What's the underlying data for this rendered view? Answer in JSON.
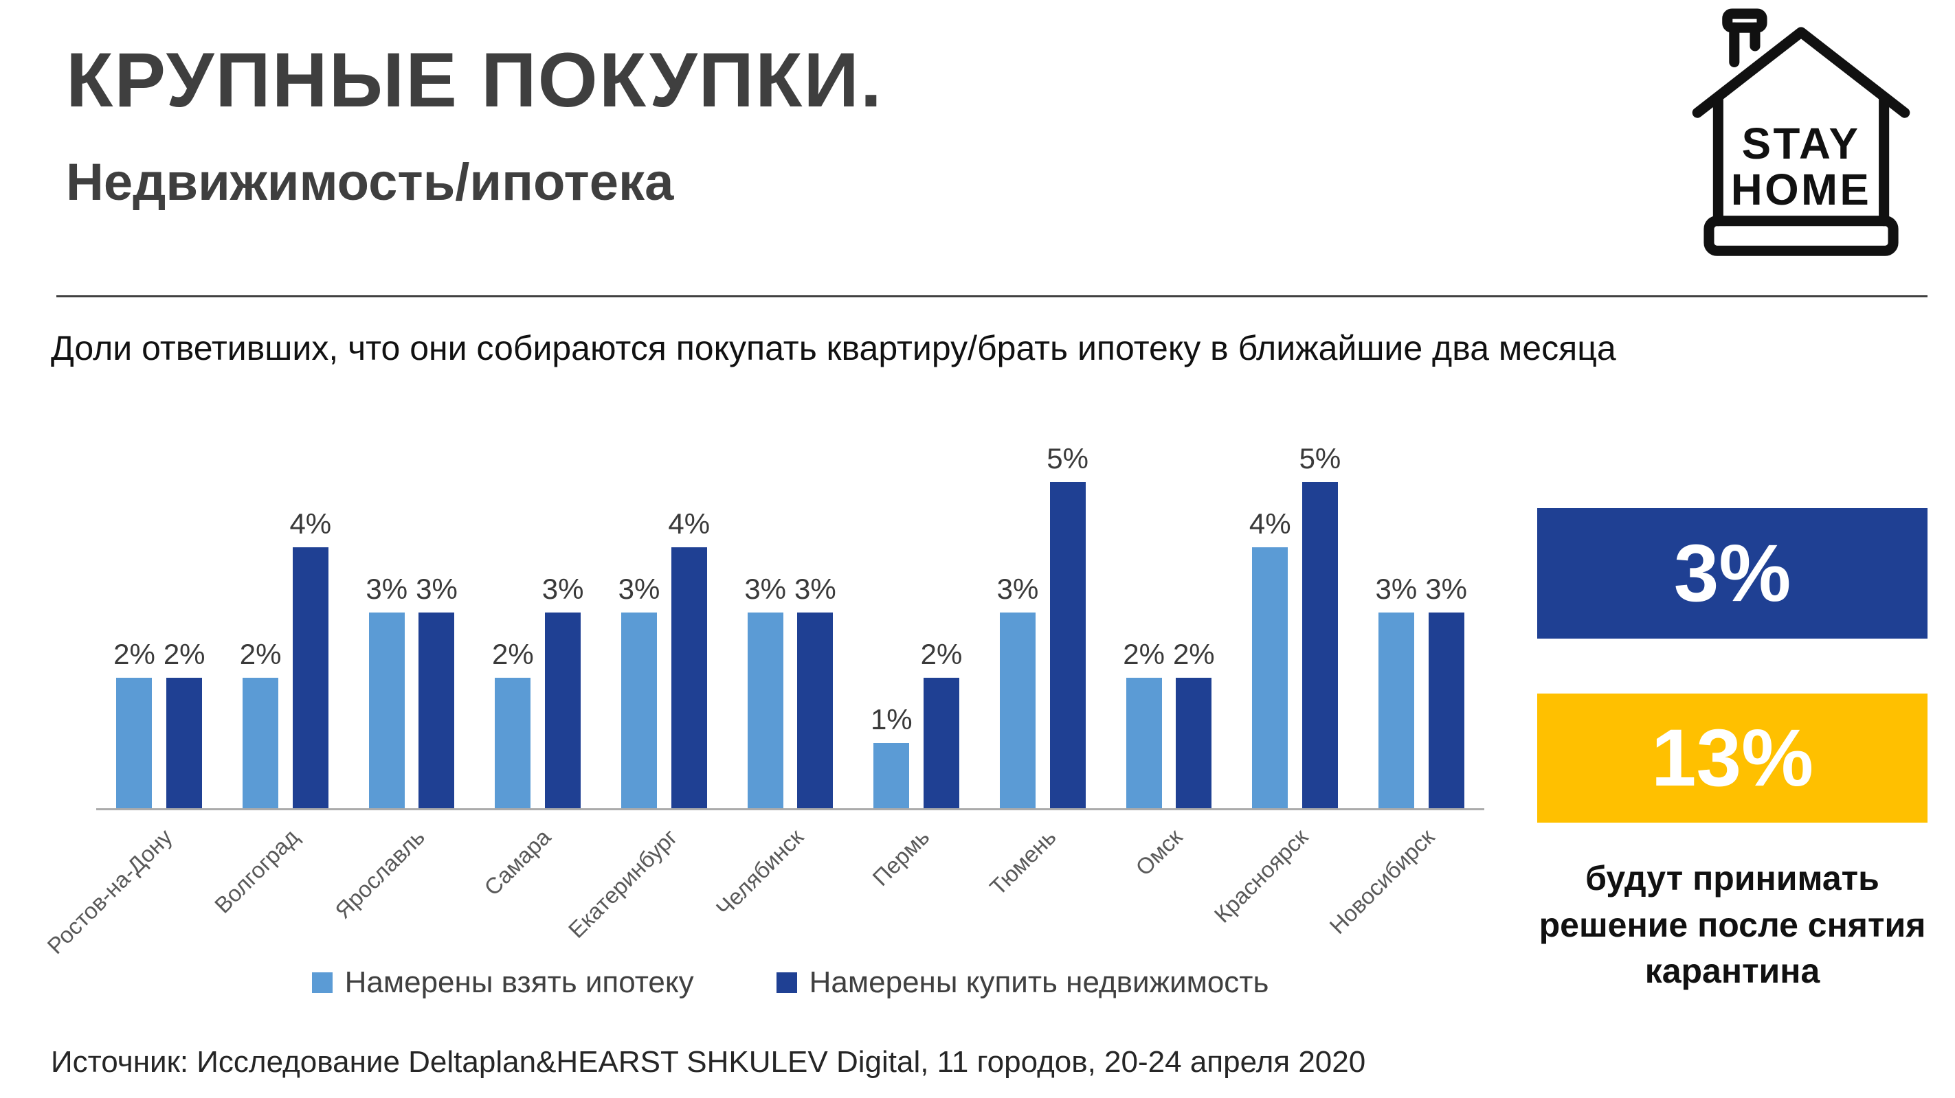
{
  "header": {
    "title": "КРУПНЫЕ ПОКУПКИ.",
    "subtitle": "Недвижимость/ипотека"
  },
  "logo": {
    "line1": "STAY",
    "line2": "HOME"
  },
  "description": "Доли ответивших, что они собираются покупать квартиру/брать ипотеку в ближайшие два месяца",
  "chart_data": {
    "type": "bar",
    "categories": [
      "Ростов-на-Дону",
      "Волгоград",
      "Ярославль",
      "Самара",
      "Екатеринбург",
      "Челябинск",
      "Пермь",
      "Тюмень",
      "Омск",
      "Красноярск",
      "Новосибирск"
    ],
    "series": [
      {
        "name": "Намерены взять ипотеку",
        "color": "#5B9BD5",
        "values": [
          2,
          2,
          3,
          2,
          3,
          3,
          1,
          3,
          2,
          4,
          3
        ]
      },
      {
        "name": "Намерены купить недвижимость",
        "color": "#1F4093",
        "values": [
          2,
          4,
          3,
          3,
          4,
          3,
          2,
          5,
          2,
          5,
          3
        ]
      }
    ],
    "value_suffix": "%",
    "ylim": [
      0,
      5.5
    ],
    "grid": false,
    "legend_position": "bottom"
  },
  "sidebar": {
    "stat1": {
      "value": "3%",
      "color": "#1F4093"
    },
    "stat2": {
      "value": "13%",
      "color": "#FFC000"
    },
    "caption": "будут принимать решение после снятия карантина"
  },
  "source": "Источник: Исследование Deltaplan&HEARST SHKULEV Digital, 11 городов, 20-24 апреля 2020"
}
